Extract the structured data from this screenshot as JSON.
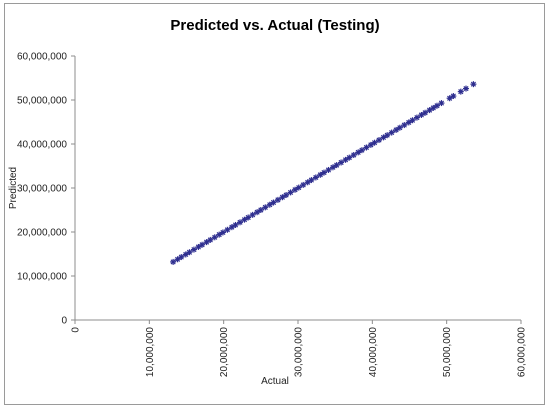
{
  "chart_data": {
    "type": "scatter",
    "title": "Predicted vs. Actual (Testing)",
    "xlabel": "Actual",
    "ylabel": "Predicted",
    "xlim": [
      0,
      60000000
    ],
    "ylim": [
      0,
      60000000
    ],
    "x_ticks": [
      "0",
      "10,000,000",
      "20,000,000",
      "30,000,000",
      "40,000,000",
      "50,000,000",
      "60,000,000"
    ],
    "y_ticks": [
      "0",
      "10,000,000",
      "20,000,000",
      "30,000,000",
      "40,000,000",
      "50,000,000",
      "60,000,000"
    ],
    "grid": false,
    "legend": "none",
    "marker": "star",
    "color": "#2e2e8f",
    "series": [
      {
        "x": [
          13200000,
          13800000,
          14300000,
          14900000,
          15400000,
          16000000,
          16600000,
          17100000,
          17700000,
          18200000,
          18800000,
          19400000,
          19900000,
          20500000,
          21100000,
          21600000,
          22200000,
          22800000,
          23300000,
          23900000,
          24500000,
          25000000,
          25600000,
          26200000,
          26700000,
          27300000,
          27900000,
          28400000,
          29000000,
          29600000,
          30100000,
          30700000,
          31300000,
          31800000,
          32400000,
          33000000,
          33500000,
          34100000,
          34700000,
          35200000,
          35800000,
          36400000,
          36900000,
          37500000,
          38100000,
          38600000,
          39200000,
          39800000,
          40300000,
          40900000,
          41500000,
          42000000,
          42600000,
          43200000,
          43700000,
          44300000,
          44900000,
          45400000,
          46000000,
          46600000,
          47100000,
          47700000,
          48200000,
          48700000,
          49300000,
          50400000,
          50900000,
          51900000,
          52600000,
          53600000
        ],
        "y": [
          13200000,
          13800000,
          14300000,
          14900000,
          15400000,
          16000000,
          16600000,
          17100000,
          17700000,
          18200000,
          18800000,
          19400000,
          19900000,
          20500000,
          21100000,
          21600000,
          22200000,
          22800000,
          23300000,
          23900000,
          24500000,
          25000000,
          25600000,
          26200000,
          26700000,
          27300000,
          27900000,
          28400000,
          29000000,
          29600000,
          30100000,
          30700000,
          31300000,
          31800000,
          32400000,
          33000000,
          33500000,
          34100000,
          34700000,
          35200000,
          35800000,
          36400000,
          36900000,
          37500000,
          38100000,
          38600000,
          39200000,
          39800000,
          40300000,
          40900000,
          41500000,
          42000000,
          42600000,
          43200000,
          43700000,
          44300000,
          44900000,
          45400000,
          46000000,
          46600000,
          47100000,
          47700000,
          48200000,
          48700000,
          49300000,
          50400000,
          50900000,
          51900000,
          52600000,
          53600000
        ]
      }
    ]
  }
}
